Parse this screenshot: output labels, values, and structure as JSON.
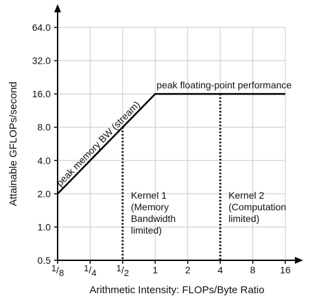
{
  "chart_data": {
    "type": "line",
    "xlabel": "Arithmetic Intensity: FLOPs/Byte Ratio",
    "ylabel": "Attainable GFLOPs/second",
    "x_scale": "log2",
    "y_scale": "log2",
    "xlim": [
      0.125,
      16
    ],
    "ylim": [
      0.5,
      64
    ],
    "grid": true,
    "x_ticks": [
      {
        "value": 0.125,
        "num": "1",
        "den": "8"
      },
      {
        "value": 0.25,
        "num": "1",
        "den": "4"
      },
      {
        "value": 0.5,
        "num": "1",
        "den": "2"
      },
      {
        "value": 1,
        "label": "1"
      },
      {
        "value": 2,
        "label": "2"
      },
      {
        "value": 4,
        "label": "4"
      },
      {
        "value": 8,
        "label": "8"
      },
      {
        "value": 16,
        "label": "16"
      }
    ],
    "y_ticks": [
      {
        "value": 0.5,
        "label": "0.5"
      },
      {
        "value": 1,
        "label": "1.0"
      },
      {
        "value": 2,
        "label": "2.0"
      },
      {
        "value": 4,
        "label": "4.0"
      },
      {
        "value": 8,
        "label": "8.0"
      },
      {
        "value": 16,
        "label": "16.0"
      },
      {
        "value": 32,
        "label": "32.0"
      },
      {
        "value": 64,
        "label": "64.0"
      }
    ],
    "series": [
      {
        "x": [
          0.125,
          1,
          16
        ],
        "y": [
          2,
          16,
          16
        ]
      }
    ],
    "annotations": {
      "memory_roof": "peak memory BW (stream)",
      "compute_roof": "peak floating-point performance"
    },
    "kernels": [
      {
        "x": 0.5,
        "lines": [
          "Kernel 1",
          "(Memory",
          "Bandwidth",
          "limited)"
        ]
      },
      {
        "x": 4,
        "lines": [
          "Kernel 2",
          "(Computation",
          "limited)"
        ]
      }
    ]
  }
}
